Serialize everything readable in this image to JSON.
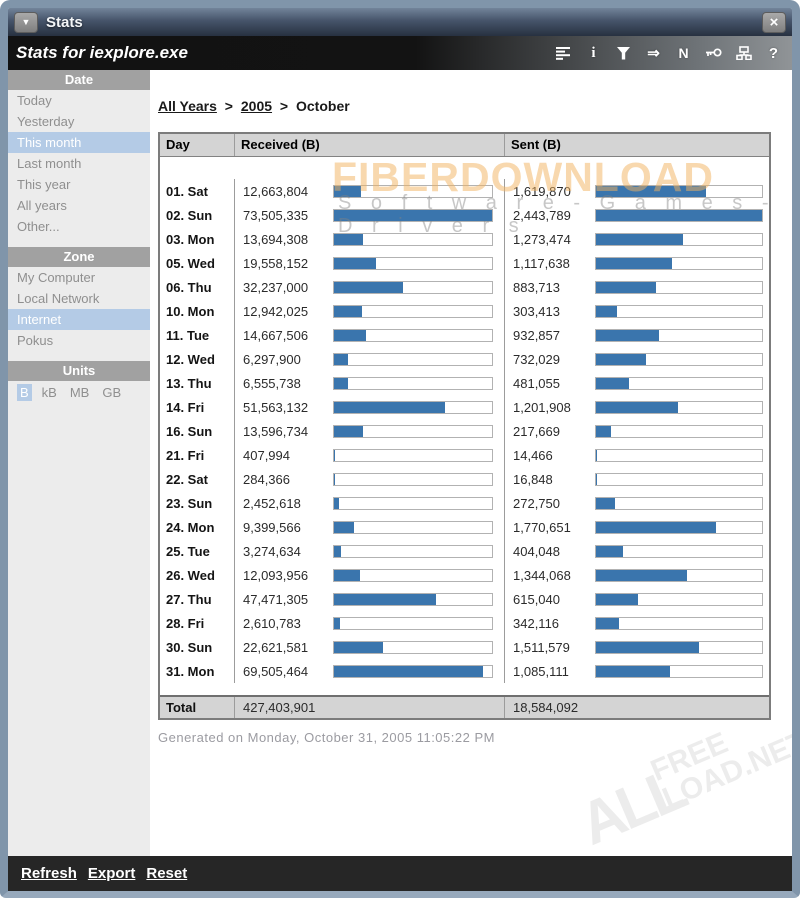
{
  "window": {
    "title": "Stats",
    "subtitle": "Stats for iexplore.exe"
  },
  "toolbar": {
    "glyphs": {
      "info": "i",
      "arrow": "⇒",
      "n": "N",
      "help": "?"
    }
  },
  "sidebar": {
    "sections": [
      {
        "title": "Date",
        "layout": "vertical",
        "items": [
          {
            "label": "Today",
            "selected": false
          },
          {
            "label": "Yesterday",
            "selected": false
          },
          {
            "label": "This month",
            "selected": true
          },
          {
            "label": "Last month",
            "selected": false
          },
          {
            "label": "This year",
            "selected": false
          },
          {
            "label": "All years",
            "selected": false
          },
          {
            "label": "Other...",
            "selected": false
          }
        ]
      },
      {
        "title": "Zone",
        "layout": "vertical",
        "items": [
          {
            "label": "My Computer",
            "selected": false
          },
          {
            "label": "Local Network",
            "selected": false
          },
          {
            "label": "Internet",
            "selected": true
          },
          {
            "label": "Pokus",
            "selected": false
          }
        ]
      },
      {
        "title": "Units",
        "layout": "horizontal",
        "items": [
          {
            "label": "B",
            "selected": true
          },
          {
            "label": "kB",
            "selected": false
          },
          {
            "label": "MB",
            "selected": false
          },
          {
            "label": "GB",
            "selected": false
          }
        ]
      }
    ]
  },
  "breadcrumb": {
    "all_years": "All Years",
    "year": "2005",
    "current": "October",
    "separator": ">"
  },
  "table": {
    "headers": [
      "Day",
      "Received (B)",
      "Sent (B)"
    ],
    "max_received_bytes": 73505335,
    "max_sent_bytes": 2443789,
    "rows": [
      {
        "day": "01. Sat",
        "received": "12,663,804",
        "received_bytes": 12663804,
        "sent": "1,619,870",
        "sent_bytes": 1619870
      },
      {
        "day": "02. Sun",
        "received": "73,505,335",
        "received_bytes": 73505335,
        "sent": "2,443,789",
        "sent_bytes": 2443789
      },
      {
        "day": "03. Mon",
        "received": "13,694,308",
        "received_bytes": 13694308,
        "sent": "1,273,474",
        "sent_bytes": 1273474
      },
      {
        "day": "05. Wed",
        "received": "19,558,152",
        "received_bytes": 19558152,
        "sent": "1,117,638",
        "sent_bytes": 1117638
      },
      {
        "day": "06. Thu",
        "received": "32,237,000",
        "received_bytes": 32237000,
        "sent": "883,713",
        "sent_bytes": 883713
      },
      {
        "day": "10. Mon",
        "received": "12,942,025",
        "received_bytes": 12942025,
        "sent": "303,413",
        "sent_bytes": 303413
      },
      {
        "day": "11. Tue",
        "received": "14,667,506",
        "received_bytes": 14667506,
        "sent": "932,857",
        "sent_bytes": 932857
      },
      {
        "day": "12. Wed",
        "received": "6,297,900",
        "received_bytes": 6297900,
        "sent": "732,029",
        "sent_bytes": 732029
      },
      {
        "day": "13. Thu",
        "received": "6,555,738",
        "received_bytes": 6555738,
        "sent": "481,055",
        "sent_bytes": 481055
      },
      {
        "day": "14. Fri",
        "received": "51,563,132",
        "received_bytes": 51563132,
        "sent": "1,201,908",
        "sent_bytes": 1201908
      },
      {
        "day": "16. Sun",
        "received": "13,596,734",
        "received_bytes": 13596734,
        "sent": "217,669",
        "sent_bytes": 217669
      },
      {
        "day": "21. Fri",
        "received": "407,994",
        "received_bytes": 407994,
        "sent": "14,466",
        "sent_bytes": 14466
      },
      {
        "day": "22. Sat",
        "received": "284,366",
        "received_bytes": 284366,
        "sent": "16,848",
        "sent_bytes": 16848
      },
      {
        "day": "23. Sun",
        "received": "2,452,618",
        "received_bytes": 2452618,
        "sent": "272,750",
        "sent_bytes": 272750
      },
      {
        "day": "24. Mon",
        "received": "9,399,566",
        "received_bytes": 9399566,
        "sent": "1,770,651",
        "sent_bytes": 1770651
      },
      {
        "day": "25. Tue",
        "received": "3,274,634",
        "received_bytes": 3274634,
        "sent": "404,048",
        "sent_bytes": 404048
      },
      {
        "day": "26. Wed",
        "received": "12,093,956",
        "received_bytes": 12093956,
        "sent": "1,344,068",
        "sent_bytes": 1344068
      },
      {
        "day": "27. Thu",
        "received": "47,471,305",
        "received_bytes": 47471305,
        "sent": "615,040",
        "sent_bytes": 615040
      },
      {
        "day": "28. Fri",
        "received": "2,610,783",
        "received_bytes": 2610783,
        "sent": "342,116",
        "sent_bytes": 342116
      },
      {
        "day": "30. Sun",
        "received": "22,621,581",
        "received_bytes": 22621581,
        "sent": "1,511,579",
        "sent_bytes": 1511579
      },
      {
        "day": "31. Mon",
        "received": "69,505,464",
        "received_bytes": 69505464,
        "sent": "1,085,111",
        "sent_bytes": 1085111
      }
    ],
    "total": {
      "label": "Total",
      "received": "427,403,901",
      "sent": "18,584,092"
    }
  },
  "note": "Generated on Monday, October 31, 2005 11:05:22 PM",
  "footer": {
    "links": [
      {
        "label": "Refresh",
        "name": "refresh-link"
      },
      {
        "label": "Export",
        "name": "export-link"
      },
      {
        "label": "Reset",
        "name": "reset-link"
      }
    ]
  },
  "watermark": {
    "main": "FIBERDOWNLOAD",
    "sub": "S o f t w a r e   -   G a m e s   -   D r i v e r s",
    "corner_big": "ALL",
    "corner_line1": "FREE",
    "corner_line2": "LOAD.NET"
  },
  "colors": {
    "bar": "#3a75ad",
    "selection": "#b4cbe6",
    "header_bg": "#d4d4d4"
  }
}
